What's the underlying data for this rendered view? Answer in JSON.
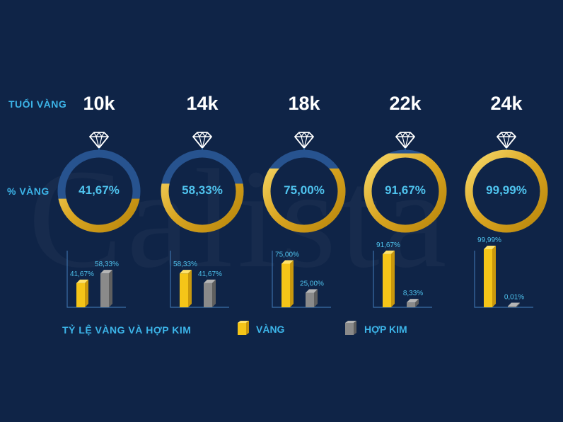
{
  "watermark": "Calista",
  "labels": {
    "age": "TUỔI VÀNG",
    "percent": "% VÀNG",
    "ratio": "TỶ LỆ VÀNG VÀ HỢP KIM"
  },
  "legend": {
    "gold": "VÀNG",
    "alloy": "HỢP KIM"
  },
  "colors": {
    "background": "#0f2447",
    "gold": "#f5c518",
    "alloy": "#8a8a8a",
    "ring_empty": "#27538f",
    "label": "#3cb4e8"
  },
  "chart_data": {
    "type": "bar",
    "categories": [
      "10k",
      "14k",
      "18k",
      "22k",
      "24k"
    ],
    "series": [
      {
        "name": "VÀNG",
        "values": [
          41.67,
          58.33,
          75.0,
          91.67,
          99.99
        ],
        "labels": [
          "41,67%",
          "58,33%",
          "75,00%",
          "91,67%",
          "99,99%"
        ]
      },
      {
        "name": "HỢP KIM",
        "values": [
          58.33,
          41.67,
          25.0,
          8.33,
          0.01
        ],
        "labels": [
          "58,33%",
          "41,67%",
          "25,00%",
          "8,33%",
          "0,01%"
        ]
      }
    ],
    "ylim": [
      0,
      100
    ]
  }
}
